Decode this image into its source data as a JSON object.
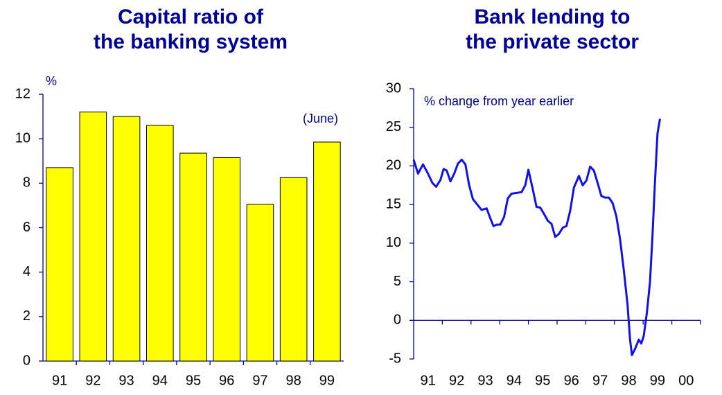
{
  "chart_data": [
    {
      "type": "bar",
      "title": [
        "Capital ratio of",
        "the banking system"
      ],
      "y_label": "%",
      "annotation": "(June)",
      "categories": [
        "91",
        "92",
        "93",
        "94",
        "95",
        "96",
        "97",
        "98",
        "99"
      ],
      "values": [
        8.7,
        11.2,
        11.0,
        10.6,
        9.35,
        9.15,
        7.05,
        8.25,
        9.85
      ],
      "color": "#ffff00",
      "ylim": [
        0,
        12
      ],
      "yticks": [
        0,
        2,
        4,
        6,
        8,
        10,
        12
      ]
    },
    {
      "type": "line",
      "title": [
        "Bank lending to",
        "the private sector"
      ],
      "y_label": "% change from year earlier",
      "color": "#1010ee",
      "x": [
        1991.0,
        1991.152,
        1991.326,
        1991.5,
        1991.652,
        1991.783,
        1991.935,
        1992.043,
        1992.152,
        1992.283,
        1992.413,
        1992.543,
        1992.674,
        1992.804,
        1992.935,
        1993.065,
        1993.239,
        1993.37,
        1993.543,
        1993.674,
        1993.783,
        1993.891,
        1994.022,
        1994.152,
        1994.283,
        1994.413,
        1994.587,
        1994.761,
        1994.891,
        1995.0,
        1995.152,
        1995.283,
        1995.413,
        1995.543,
        1995.674,
        1995.804,
        1995.935,
        1996.065,
        1996.196,
        1996.326,
        1996.457,
        1996.587,
        1996.761,
        1996.891,
        1997.022,
        1997.152,
        1997.283,
        1997.413,
        1997.543,
        1997.674,
        1997.804,
        1997.935,
        1998.065,
        1998.196,
        1998.326,
        1998.457,
        1998.543,
        1998.609,
        1998.717,
        1998.848,
        1998.935,
        1999.022,
        1999.13,
        1999.239,
        1999.326,
        1999.413,
        1999.5,
        1999.587
      ],
      "values": [
        20.8,
        19,
        20.2,
        19,
        17.8,
        17.3,
        18.2,
        19.6,
        19.4,
        18,
        19,
        20.3,
        20.8,
        20.2,
        17.5,
        15.7,
        14.9,
        14.3,
        14.5,
        13.2,
        12.2,
        12.4,
        12.4,
        13.4,
        15.8,
        16.4,
        16.5,
        16.6,
        17.5,
        19.5,
        17,
        14.7,
        14.6,
        13.8,
        12.9,
        12.5,
        10.8,
        11.2,
        12,
        12.2,
        14.2,
        17.2,
        18.7,
        17.5,
        18.1,
        19.9,
        19.4,
        17.8,
        16.1,
        15.9,
        15.9,
        15.2,
        13.5,
        10.5,
        6.5,
        2,
        -2.5,
        -4.5,
        -3.7,
        -2.5,
        -3,
        -2,
        1,
        5,
        11,
        18,
        24.2,
        26.1
      ],
      "xlim": [
        1991,
        2001
      ],
      "xticks": [
        {
          "value": 1991.5,
          "label": "91"
        },
        {
          "value": 1992.5,
          "label": "92"
        },
        {
          "value": 1993.5,
          "label": "93"
        },
        {
          "value": 1994.5,
          "label": "94"
        },
        {
          "value": 1995.5,
          "label": "95"
        },
        {
          "value": 1996.5,
          "label": "96"
        },
        {
          "value": 1997.5,
          "label": "97"
        },
        {
          "value": 1998.5,
          "label": "98"
        },
        {
          "value": 1999.5,
          "label": "99"
        },
        {
          "value": 2000.5,
          "label": "00"
        }
      ],
      "xtick_marks": [
        1992,
        1993,
        1994,
        1995,
        1996,
        1997,
        1998,
        1999,
        2000,
        2001
      ],
      "ylim": [
        -5,
        30
      ],
      "yticks": [
        -5,
        0,
        5,
        10,
        15,
        20,
        25,
        30
      ]
    }
  ]
}
